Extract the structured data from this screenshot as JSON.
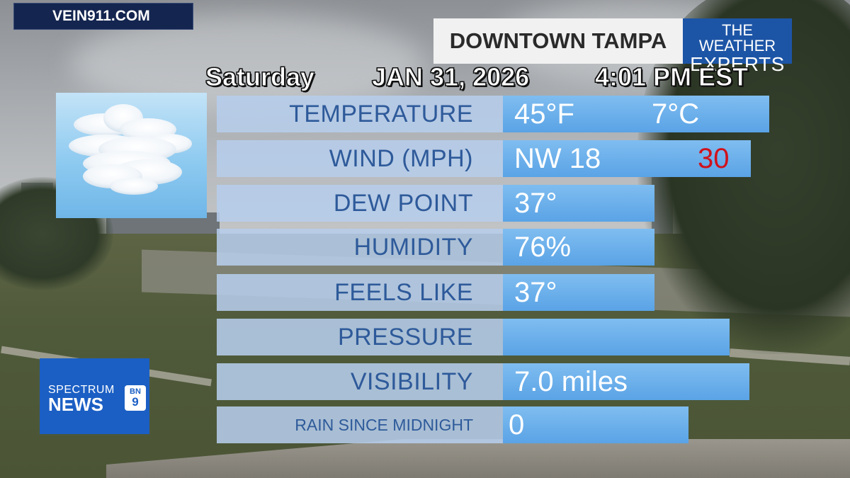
{
  "site": {
    "badge": "VEIN911.COM"
  },
  "header": {
    "location": "DOWNTOWN TAMPA",
    "brand_line1": "THE WEATHER",
    "brand_line2": "EXPERTS"
  },
  "datetime": {
    "day": "Saturday",
    "date": "JAN 31, 2026",
    "time": "4:01 PM EST"
  },
  "condition_icon": "cloudy-icon",
  "rows": [
    {
      "label": "TEMPERATURE",
      "value": "45°F",
      "value2": "7°C"
    },
    {
      "label": "WIND (MPH)",
      "value": "NW 18",
      "gust": "30"
    },
    {
      "label": "DEW POINT",
      "value": "37°"
    },
    {
      "label": "HUMIDITY",
      "value": "76%"
    },
    {
      "label": "FEELS LIKE",
      "value": "37°"
    },
    {
      "label": "PRESSURE",
      "value": ""
    },
    {
      "label": "VISIBILITY",
      "value": "7.0 miles"
    },
    {
      "label": "RAIN SINCE MIDNIGHT",
      "value": "0"
    }
  ],
  "logo": {
    "line1": "SPECTRUM",
    "line2": "NEWS",
    "bn_top": "BN",
    "bn_bottom": "9"
  },
  "colors": {
    "label_text": "#2e5a9a",
    "value_bar": "#5aa3e6",
    "gust": "#d0111b",
    "brand_blue": "#1d55a6"
  }
}
